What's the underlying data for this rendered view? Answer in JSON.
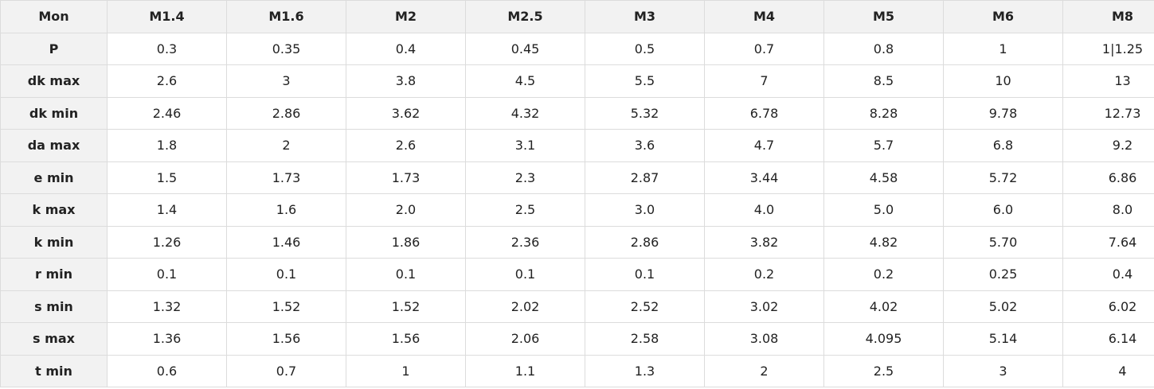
{
  "table": {
    "header": [
      "Mon",
      "M1.4",
      "M1.6",
      "M2",
      "M2.5",
      "M3",
      "M4",
      "M5",
      "M6",
      "M8"
    ],
    "rows": [
      [
        "P",
        "0.3",
        "0.35",
        "0.4",
        "0.45",
        "0.5",
        "0.7",
        "0.8",
        "1",
        "1|1.25"
      ],
      [
        "dk max",
        "2.6",
        "3",
        "3.8",
        "4.5",
        "5.5",
        "7",
        "8.5",
        "10",
        "13"
      ],
      [
        "dk min",
        "2.46",
        "2.86",
        "3.62",
        "4.32",
        "5.32",
        "6.78",
        "8.28",
        "9.78",
        "12.73"
      ],
      [
        "da max",
        "1.8",
        "2",
        "2.6",
        "3.1",
        "3.6",
        "4.7",
        "5.7",
        "6.8",
        "9.2"
      ],
      [
        "e min",
        "1.5",
        "1.73",
        "1.73",
        "2.3",
        "2.87",
        "3.44",
        "4.58",
        "5.72",
        "6.86"
      ],
      [
        "k max",
        "1.4",
        "1.6",
        "2.0",
        "2.5",
        "3.0",
        "4.0",
        "5.0",
        "6.0",
        "8.0"
      ],
      [
        "k min",
        "1.26",
        "1.46",
        "1.86",
        "2.36",
        "2.86",
        "3.82",
        "4.82",
        "5.70",
        "7.64"
      ],
      [
        "r min",
        "0.1",
        "0.1",
        "0.1",
        "0.1",
        "0.1",
        "0.2",
        "0.2",
        "0.25",
        "0.4"
      ],
      [
        "s min",
        "1.32",
        "1.52",
        "1.52",
        "2.02",
        "2.52",
        "3.02",
        "4.02",
        "5.02",
        "6.02"
      ],
      [
        "s max",
        "1.36",
        "1.56",
        "1.56",
        "2.06",
        "2.58",
        "3.08",
        "4.095",
        "5.14",
        "6.14"
      ],
      [
        "t min",
        "0.6",
        "0.7",
        "1",
        "1.1",
        "1.3",
        "2",
        "2.5",
        "3",
        "4"
      ]
    ]
  }
}
